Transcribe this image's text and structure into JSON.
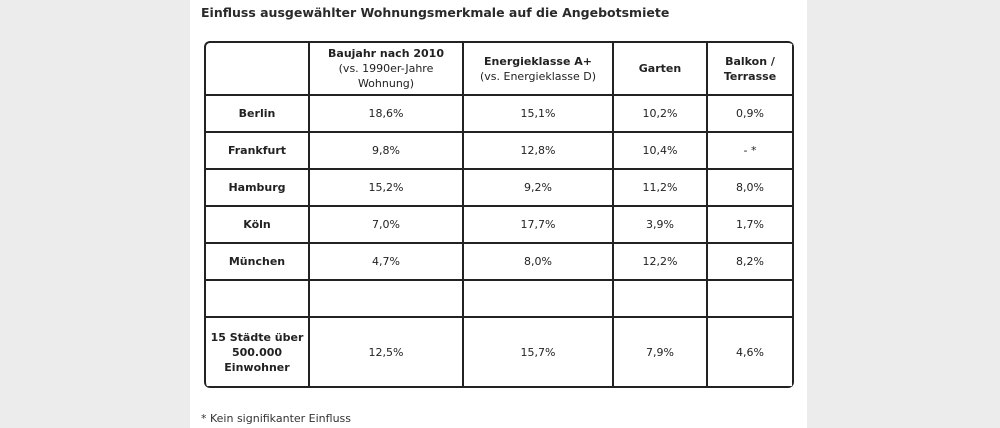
{
  "title": "Einfluss ausgewählter Wohnungsmerkmale auf die Angebotsmiete",
  "columns": [
    {
      "label": "",
      "sub": ""
    },
    {
      "label": "Baujahr nach 2010",
      "sub": "(vs. 1990er-Jahre Wohnung)"
    },
    {
      "label": "Energieklasse A+",
      "sub": "(vs. Energieklasse D)"
    },
    {
      "label": "Garten",
      "sub": ""
    },
    {
      "label": "Balkon / Terrasse",
      "sub": ""
    }
  ],
  "rows": [
    {
      "city": "Berlin",
      "values": [
        "18,6%",
        "15,1%",
        "10,2%",
        "0,9%"
      ]
    },
    {
      "city": "Frankfurt",
      "values": [
        "9,8%",
        "12,8%",
        "10,4%",
        "- *"
      ]
    },
    {
      "city": "Hamburg",
      "values": [
        "15,2%",
        "9,2%",
        "11,2%",
        "8,0%"
      ]
    },
    {
      "city": "Köln",
      "values": [
        "7,0%",
        "17,7%",
        "3,9%",
        "1,7%"
      ]
    },
    {
      "city": "München",
      "values": [
        "4,7%",
        "8,0%",
        "12,2%",
        "8,2%"
      ]
    },
    {
      "city": "",
      "values": [
        "",
        "",
        "",
        ""
      ]
    },
    {
      "city": "15 Städte über 500.000 Einwohner",
      "values": [
        "12,5%",
        "15,7%",
        "7,9%",
        "4,6%"
      ]
    }
  ],
  "footnote": "* Kein signifikanter Einfluss"
}
